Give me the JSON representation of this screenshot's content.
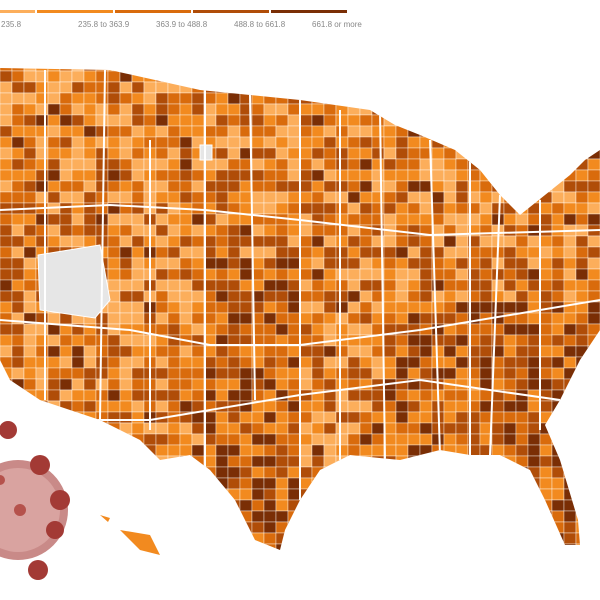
{
  "legend": {
    "items": [
      {
        "label": "235.8",
        "color": "#fcae5b"
      },
      {
        "label": "235.8 to 363.9",
        "color": "#f28a1f"
      },
      {
        "label": "363.9 to 488.8",
        "color": "#d96b0c"
      },
      {
        "label": "488.8 to 661.8",
        "color": "#b04d08"
      },
      {
        "label": "661.8 or more",
        "color": "#7a2e05"
      }
    ]
  }
}
